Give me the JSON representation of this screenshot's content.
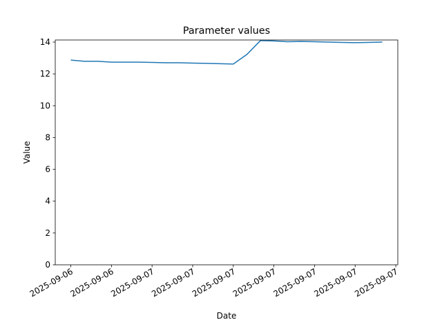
{
  "chart_data": {
    "type": "line",
    "title": "Parameter values",
    "x_label": "Date",
    "y_label": "Value",
    "x": [
      0,
      1,
      2,
      3,
      4,
      5,
      6,
      7,
      8,
      9,
      10,
      11,
      12,
      13,
      14,
      15,
      16,
      17,
      18,
      19,
      20,
      21,
      22,
      23
    ],
    "series": [
      {
        "name": "Value",
        "color": "#1f77b4",
        "values": [
          12.87,
          12.79,
          12.79,
          12.74,
          12.74,
          12.74,
          12.72,
          12.7,
          12.7,
          12.68,
          12.66,
          12.64,
          12.62,
          13.22,
          14.09,
          14.07,
          14.02,
          14.04,
          14.02,
          14.0,
          13.98,
          13.96,
          13.98,
          14.0
        ]
      }
    ],
    "xlim": [
      -1.15,
      24.15
    ],
    "xticks": [
      {
        "value": 0,
        "label": "2025-09-06"
      },
      {
        "value": 3,
        "label": "2025-09-06"
      },
      {
        "value": 6,
        "label": "2025-09-07"
      },
      {
        "value": 9,
        "label": "2025-09-07"
      },
      {
        "value": 12,
        "label": "2025-09-07"
      },
      {
        "value": 15,
        "label": "2025-09-07"
      },
      {
        "value": 18,
        "label": "2025-09-07"
      },
      {
        "value": 21,
        "label": "2025-09-07"
      },
      {
        "value": 24,
        "label": "2025-09-07"
      }
    ],
    "ylim": [
      0,
      14.13
    ],
    "yticks": [
      0,
      2,
      4,
      6,
      8,
      10,
      12,
      14
    ],
    "grid": false
  }
}
